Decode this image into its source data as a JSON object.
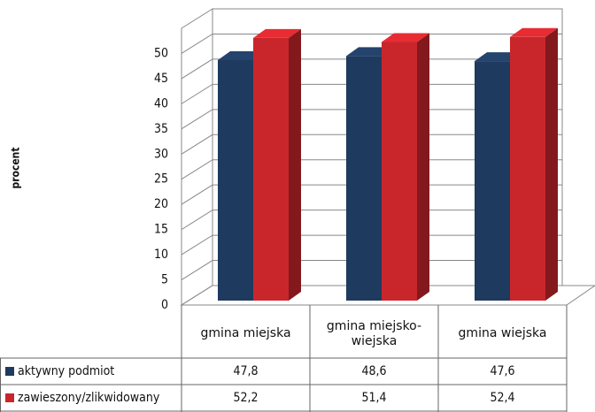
{
  "chart_data": {
    "type": "bar3d",
    "y_axis_label": "procent",
    "categories": [
      "gmina miejska",
      "gmina miejsko-wiejska",
      "gmina wiejska"
    ],
    "series": [
      {
        "name": "aktywny podmiot",
        "color": "#1f3a5f",
        "values": [
          47.8,
          48.6,
          47.6
        ],
        "value_labels": [
          "47,8",
          "48,6",
          "47,6"
        ]
      },
      {
        "name": "zawieszony/zlikwidowany",
        "color": "#c9262c",
        "values": [
          52.2,
          51.4,
          52.4
        ],
        "value_labels": [
          "52,2",
          "51,4",
          "52,4"
        ]
      }
    ],
    "ylim": [
      0,
      55
    ],
    "yticks": [
      0,
      5,
      10,
      15,
      20,
      25,
      30,
      35,
      40,
      45,
      50
    ],
    "grid": true
  }
}
